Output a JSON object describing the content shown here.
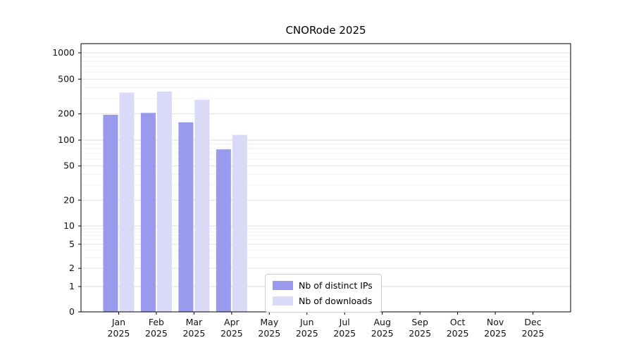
{
  "title": "CNORode 2025",
  "chart_data": {
    "type": "bar",
    "title": "CNORode 2025",
    "categories": [
      "Jan",
      "Feb",
      "Mar",
      "Apr",
      "May",
      "Jun",
      "Jul",
      "Aug",
      "Sep",
      "Oct",
      "Nov",
      "Dec"
    ],
    "year": "2025",
    "series": [
      {
        "name": "Nb of distinct IPs",
        "color": "#9999ee",
        "values": [
          195,
          205,
          160,
          78,
          0,
          0,
          0,
          0,
          0,
          0,
          0,
          0
        ]
      },
      {
        "name": "Nb of downloads",
        "color": "#dadaf8",
        "values": [
          350,
          360,
          290,
          115,
          0,
          0,
          0,
          0,
          0,
          0,
          0,
          0
        ]
      }
    ],
    "yscale": "symlog",
    "y_ticks": [
      0,
      1,
      2,
      5,
      10,
      20,
      50,
      100,
      200,
      500,
      1000
    ],
    "ylim": [
      0,
      1400
    ],
    "xlabel": "",
    "ylabel": "",
    "grid": "horizontal",
    "legend_position": "bottom-center"
  }
}
